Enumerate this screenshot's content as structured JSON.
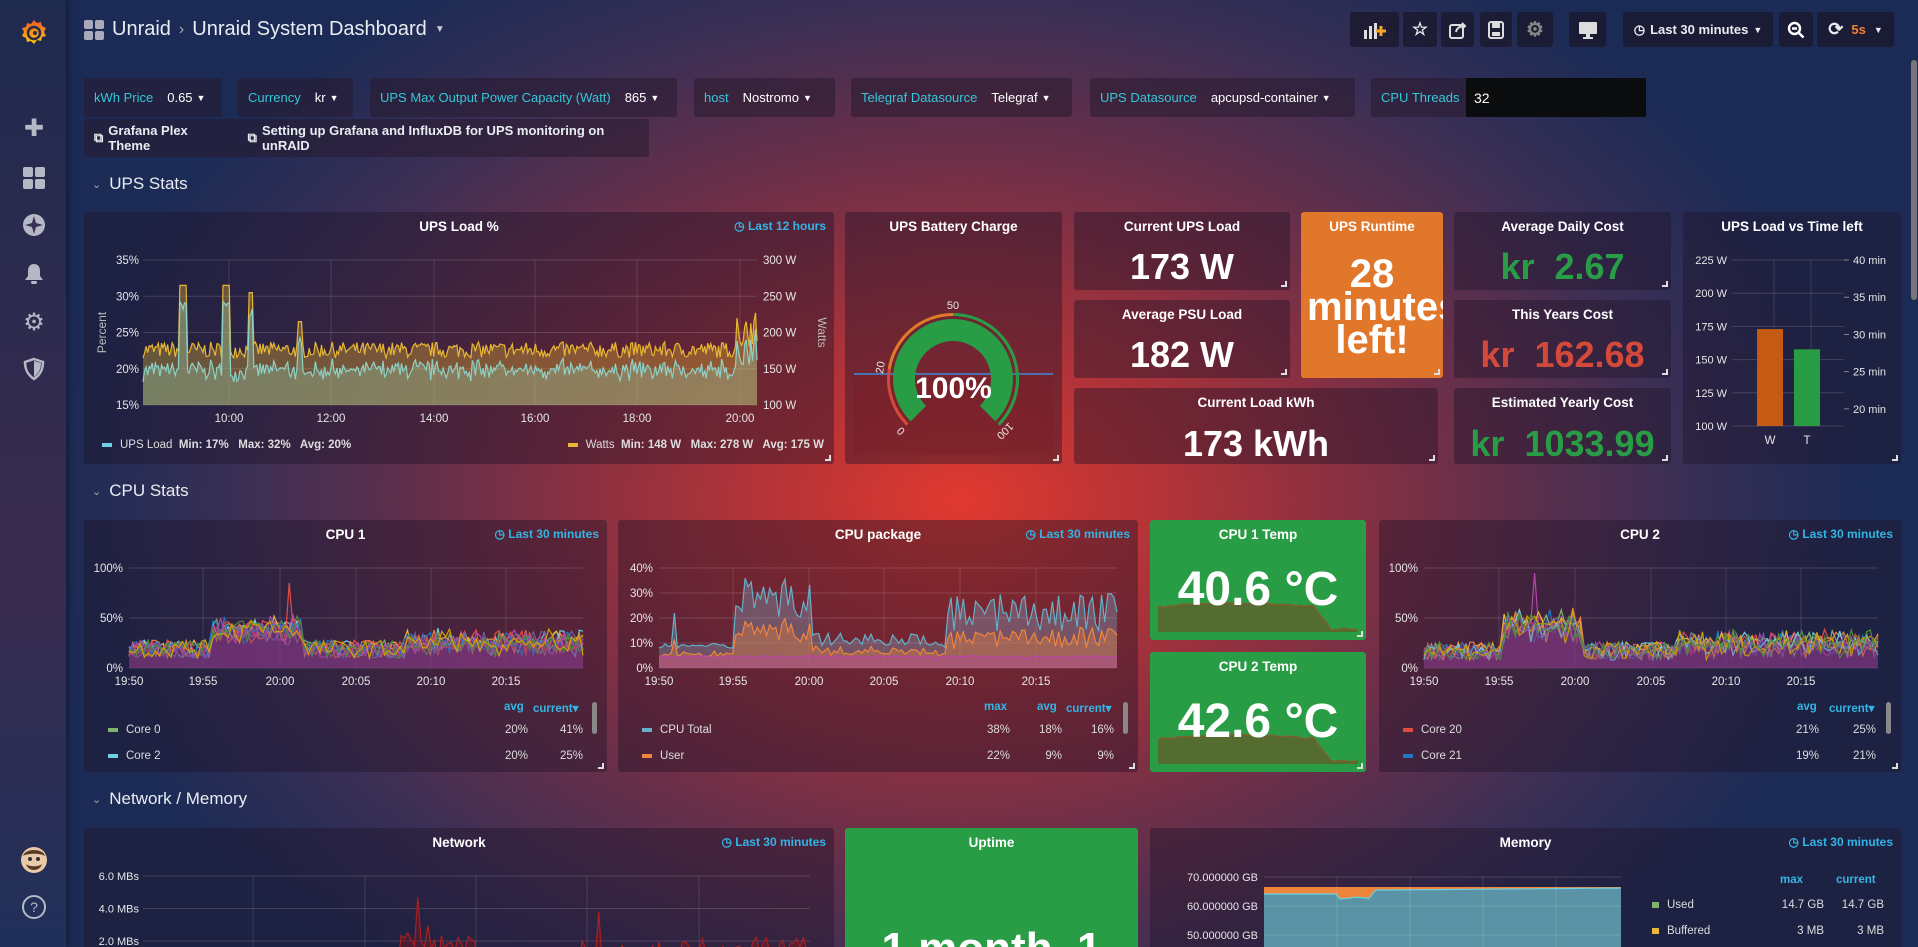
{
  "colors": {
    "accent": "#33b5e5",
    "green": "#299c46",
    "red": "#d44a3a",
    "orange": "#e07b2a",
    "var_label": "#33c7d8"
  },
  "sidebar": {
    "items": [
      {
        "icon": "grafana-logo"
      },
      {
        "icon": "plus-icon"
      },
      {
        "icon": "dashboards-icon"
      },
      {
        "icon": "explore-icon"
      },
      {
        "icon": "bell-icon"
      },
      {
        "icon": "gear-icon"
      },
      {
        "icon": "shield-icon"
      },
      {
        "icon": "avatar"
      },
      {
        "icon": "help-icon"
      }
    ]
  },
  "header": {
    "folder": "Unraid",
    "title": "Unraid System Dashboard",
    "time_range": "Last 30 minutes",
    "refresh": "5s"
  },
  "variables": [
    {
      "label": "kWh Price",
      "value": "0.65"
    },
    {
      "label": "Currency",
      "value": "kr"
    },
    {
      "label": "UPS Max Output Power Capacity (Watt)",
      "value": "865"
    },
    {
      "label": "host",
      "value": "Nostromo"
    },
    {
      "label": "Telegraf Datasource",
      "value": "Telegraf"
    },
    {
      "label": "UPS Datasource",
      "value": "apcupsd-container"
    },
    {
      "label": "CPU Threads",
      "value": "32"
    }
  ],
  "links": [
    "Grafana Plex Theme",
    "Setting up Grafana and InfluxDB for UPS monitoring on unRAID"
  ],
  "rows": [
    "UPS Stats",
    "CPU Stats",
    "Network / Memory"
  ],
  "ups_load": {
    "title": "UPS Load %",
    "time": "Last 12 hours",
    "yleft_label": "Percent",
    "yright_label": "Watts",
    "chart_data": {
      "type": "area",
      "x_ticks": [
        "10:00",
        "12:00",
        "14:00",
        "16:00",
        "18:00",
        "20:00"
      ],
      "ylim": [
        15,
        35
      ],
      "y_ticks": [
        "35%",
        "30%",
        "25%",
        "20%",
        "15%"
      ],
      "y2lim": [
        100,
        300
      ],
      "y2_ticks": [
        "300 W",
        "250 W",
        "200 W",
        "150 W",
        "100 W"
      ],
      "series": [
        {
          "name": "UPS Load",
          "color": "#8ed1c6",
          "min": "17%",
          "max": "32%",
          "avg": "20%"
        },
        {
          "name": "Watts",
          "color": "#e8b832",
          "min": "148 W",
          "max": "278 W",
          "avg": "175 W"
        }
      ]
    },
    "legend": [
      {
        "name": "UPS Load",
        "stats": "Min: 17%   Max: 32%   Avg: 20%"
      },
      {
        "name": "Watts",
        "stats": "Min: 148 W   Max: 278 W   Avg: 175 W"
      }
    ]
  },
  "battery": {
    "title": "UPS Battery Charge",
    "value": "100%",
    "percent": 100,
    "thresholds": [
      "0",
      "20",
      "50",
      "100"
    ]
  },
  "stats": {
    "current_ups_load": {
      "title": "Current UPS Load",
      "value": "173 W"
    },
    "avg_psu_load": {
      "title": "Average PSU Load",
      "value": "182 W"
    },
    "current_load_kwh": {
      "title": "Current Load kWh",
      "value": "173 kWh"
    },
    "runtime": {
      "title": "UPS Runtime",
      "value": "28 minutes left!"
    },
    "avg_daily_cost": {
      "title": "Average Daily Cost",
      "unit": "kr",
      "value": "2.67"
    },
    "this_year_cost": {
      "title": "This Years Cost",
      "unit": "kr",
      "value": "162.68"
    },
    "est_yearly_cost": {
      "title": "Estimated Yearly Cost",
      "unit": "kr",
      "value": "1033.99"
    }
  },
  "load_vs_time": {
    "title": "UPS Load vs Time left",
    "chart_data": {
      "type": "bar",
      "categories": [
        "W",
        "T"
      ],
      "values": [
        173,
        28
      ],
      "units": [
        "W",
        "min"
      ],
      "ylim": [
        100,
        225
      ],
      "y_ticks": [
        "225 W",
        "200 W",
        "175 W",
        "150 W",
        "125 W",
        "100 W"
      ],
      "y2lim": [
        17.7,
        40
      ],
      "y2_ticks": [
        "40 min",
        "35 min",
        "30 min",
        "25 min",
        "20 min"
      ],
      "colors": [
        "#c45a14",
        "#299c46"
      ]
    }
  },
  "cpu1": {
    "title": "CPU 1",
    "time": "Last 30 minutes",
    "chart_data": {
      "type": "area",
      "x_ticks": [
        "19:50",
        "19:55",
        "20:00",
        "20:05",
        "20:10",
        "20:15"
      ],
      "ylim": [
        0,
        100
      ],
      "y_ticks": [
        "100%",
        "50%",
        "0%"
      ]
    },
    "legend_headers": [
      "avg",
      "current▾"
    ],
    "legend": [
      {
        "name": "Core 0",
        "color": "#7eb26d",
        "avg": "20%",
        "current": "41%"
      },
      {
        "name": "Core 2",
        "color": "#6ed0e0",
        "avg": "20%",
        "current": "25%"
      }
    ]
  },
  "cpu_pkg": {
    "title": "CPU package",
    "time": "Last 30 minutes",
    "chart_data": {
      "type": "area",
      "x_ticks": [
        "19:50",
        "19:55",
        "20:00",
        "20:05",
        "20:10",
        "20:15"
      ],
      "ylim": [
        0,
        40
      ],
      "y_ticks": [
        "40%",
        "30%",
        "20%",
        "10%",
        "0%"
      ]
    },
    "legend_headers": [
      "max",
      "avg",
      "current▾"
    ],
    "legend": [
      {
        "name": "CPU Total",
        "color": "#64b0c8",
        "max": "38%",
        "avg": "18%",
        "current": "16%"
      },
      {
        "name": "User",
        "color": "#ef843c",
        "max": "22%",
        "avg": "9%",
        "current": "9%"
      }
    ]
  },
  "cpu1_temp": {
    "title": "CPU 1 Temp",
    "value": "40.6 °C"
  },
  "cpu2_temp": {
    "title": "CPU 2 Temp",
    "value": "42.6 °C"
  },
  "cpu2": {
    "title": "CPU 2",
    "time": "Last 30 minutes",
    "chart_data": {
      "type": "area",
      "x_ticks": [
        "19:50",
        "19:55",
        "20:00",
        "20:05",
        "20:10",
        "20:15"
      ],
      "ylim": [
        0,
        100
      ],
      "y_ticks": [
        "100%",
        "50%",
        "0%"
      ]
    },
    "legend_headers": [
      "avg",
      "current▾"
    ],
    "legend": [
      {
        "name": "Core 20",
        "color": "#e24d42",
        "avg": "21%",
        "current": "25%"
      },
      {
        "name": "Core 21",
        "color": "#1f78c1",
        "avg": "19%",
        "current": "21%"
      }
    ]
  },
  "network": {
    "title": "Network",
    "time": "Last 30 minutes",
    "chart_data": {
      "type": "line",
      "y_ticks": [
        "6.0 MBs",
        "4.0 MBs",
        "2.0 MBs"
      ]
    }
  },
  "uptime": {
    "title": "Uptime",
    "value": "1 month, 1"
  },
  "memory": {
    "title": "Memory",
    "time": "Last 30 minutes",
    "chart_data": {
      "type": "area",
      "y_ticks": [
        "70.000000 GB",
        "60.000000 GB",
        "50.000000 GB"
      ]
    },
    "legend_headers": [
      "max",
      "current"
    ],
    "legend": [
      {
        "name": "Used",
        "color": "#7eb26d",
        "max": "14.7 GB",
        "current": "14.7 GB"
      },
      {
        "name": "Buffered",
        "color": "#eab839",
        "max": "3 MB",
        "current": "3 MB"
      }
    ]
  }
}
